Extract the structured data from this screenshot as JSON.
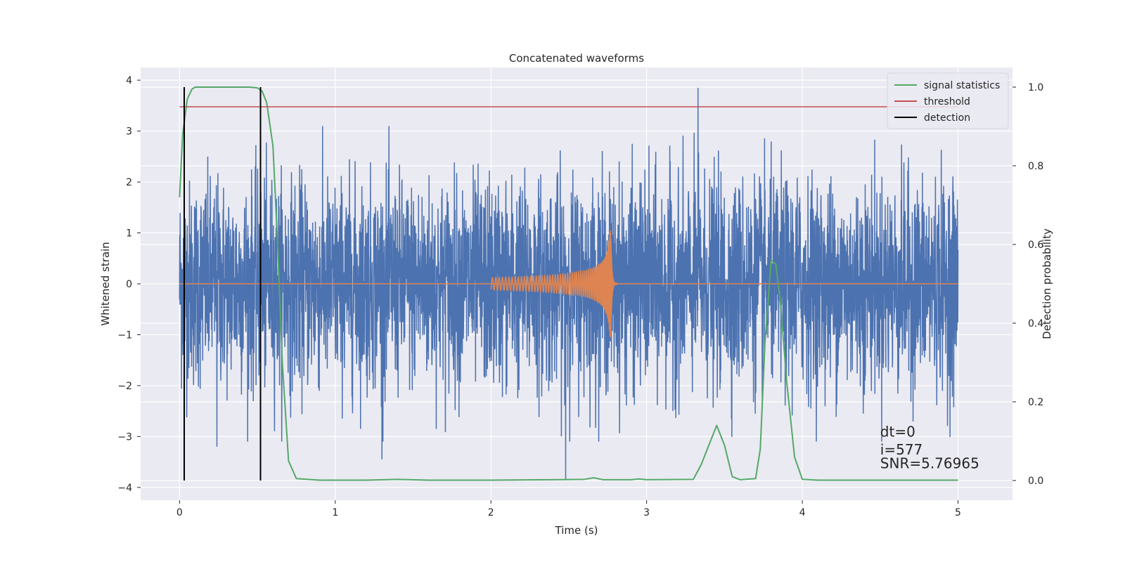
{
  "chart_data": {
    "type": "line",
    "title": "Concatenated waveforms",
    "xlabel": "Time (s)",
    "ylabel": "Whitened strain",
    "y2label": "Detection probability",
    "xlim": [
      -0.25,
      5.35
    ],
    "ylim": [
      -4.25,
      4.25
    ],
    "y2lim": [
      -0.05,
      1.05
    ],
    "xticks": [
      0,
      1,
      2,
      3,
      4,
      5
    ],
    "yticks": [
      -4,
      -3,
      -2,
      -1,
      0,
      1,
      2,
      3,
      4
    ],
    "y2ticks": [
      0.0,
      0.2,
      0.4,
      0.6,
      0.8,
      1.0
    ],
    "y2ticklabels": [
      "0.0",
      "0.2",
      "0.4",
      "0.6",
      "0.8",
      "1.0"
    ],
    "grid": true,
    "legend_position": "top-right",
    "series": [
      {
        "name": "",
        "axis": "left",
        "color": "#4c72b0",
        "description_kind": "noise",
        "x_range": [
          0,
          5
        ],
        "notable_peaks": [
          {
            "x": 3.33,
            "y": 3.85
          },
          {
            "x": 2.48,
            "y": -3.85
          },
          {
            "x": 1.3,
            "y": -3.45
          },
          {
            "x": 0.24,
            "y": -3.2
          }
        ]
      },
      {
        "name": "",
        "axis": "left",
        "color": "#dd8452",
        "description_kind": "chirp",
        "x_range": [
          2.0,
          2.8
        ],
        "peak": {
          "x": 2.77,
          "y": 1.1
        }
      },
      {
        "name": "signal statistics",
        "axis": "right",
        "color": "#55a868",
        "x": [
          0.0,
          0.02,
          0.05,
          0.08,
          0.1,
          0.15,
          0.3,
          0.45,
          0.5,
          0.53,
          0.56,
          0.6,
          0.63,
          0.66,
          0.7,
          0.75,
          0.9,
          1.2,
          1.4,
          1.6,
          2.0,
          2.4,
          2.6,
          2.66,
          2.72,
          2.9,
          2.95,
          3.0,
          3.3,
          3.35,
          3.4,
          3.45,
          3.5,
          3.55,
          3.6,
          3.7,
          3.73,
          3.76,
          3.8,
          3.83,
          3.86,
          3.9,
          3.95,
          4.0,
          4.1,
          4.5,
          5.0
        ],
        "y": [
          0.72,
          0.88,
          0.97,
          0.995,
          1.0,
          1.0,
          1.0,
          1.0,
          0.998,
          0.99,
          0.96,
          0.85,
          0.6,
          0.3,
          0.05,
          0.005,
          0.001,
          0.001,
          0.003,
          0.001,
          0.001,
          0.002,
          0.003,
          0.007,
          0.002,
          0.002,
          0.004,
          0.002,
          0.003,
          0.04,
          0.09,
          0.14,
          0.09,
          0.01,
          0.002,
          0.005,
          0.08,
          0.35,
          0.56,
          0.55,
          0.45,
          0.25,
          0.06,
          0.003,
          0.001,
          0.001,
          0.001
        ]
      },
      {
        "name": "threshold",
        "axis": "right",
        "color": "#c44e52",
        "x": [
          0.0,
          5.0
        ],
        "y": [
          0.95,
          0.95
        ]
      },
      {
        "name": "detection",
        "axis": "right",
        "color": "#000000",
        "vlines": [
          0.03,
          0.52
        ],
        "y_range": [
          0.0,
          1.0
        ]
      }
    ],
    "annotations": [
      {
        "text": "dt=0",
        "x": 4.5,
        "y": -3.0
      },
      {
        "text": "i=577",
        "x": 4.5,
        "y": -3.35
      },
      {
        "text": "SNR=5.76965",
        "x": 4.5,
        "y": -3.62
      }
    ]
  }
}
